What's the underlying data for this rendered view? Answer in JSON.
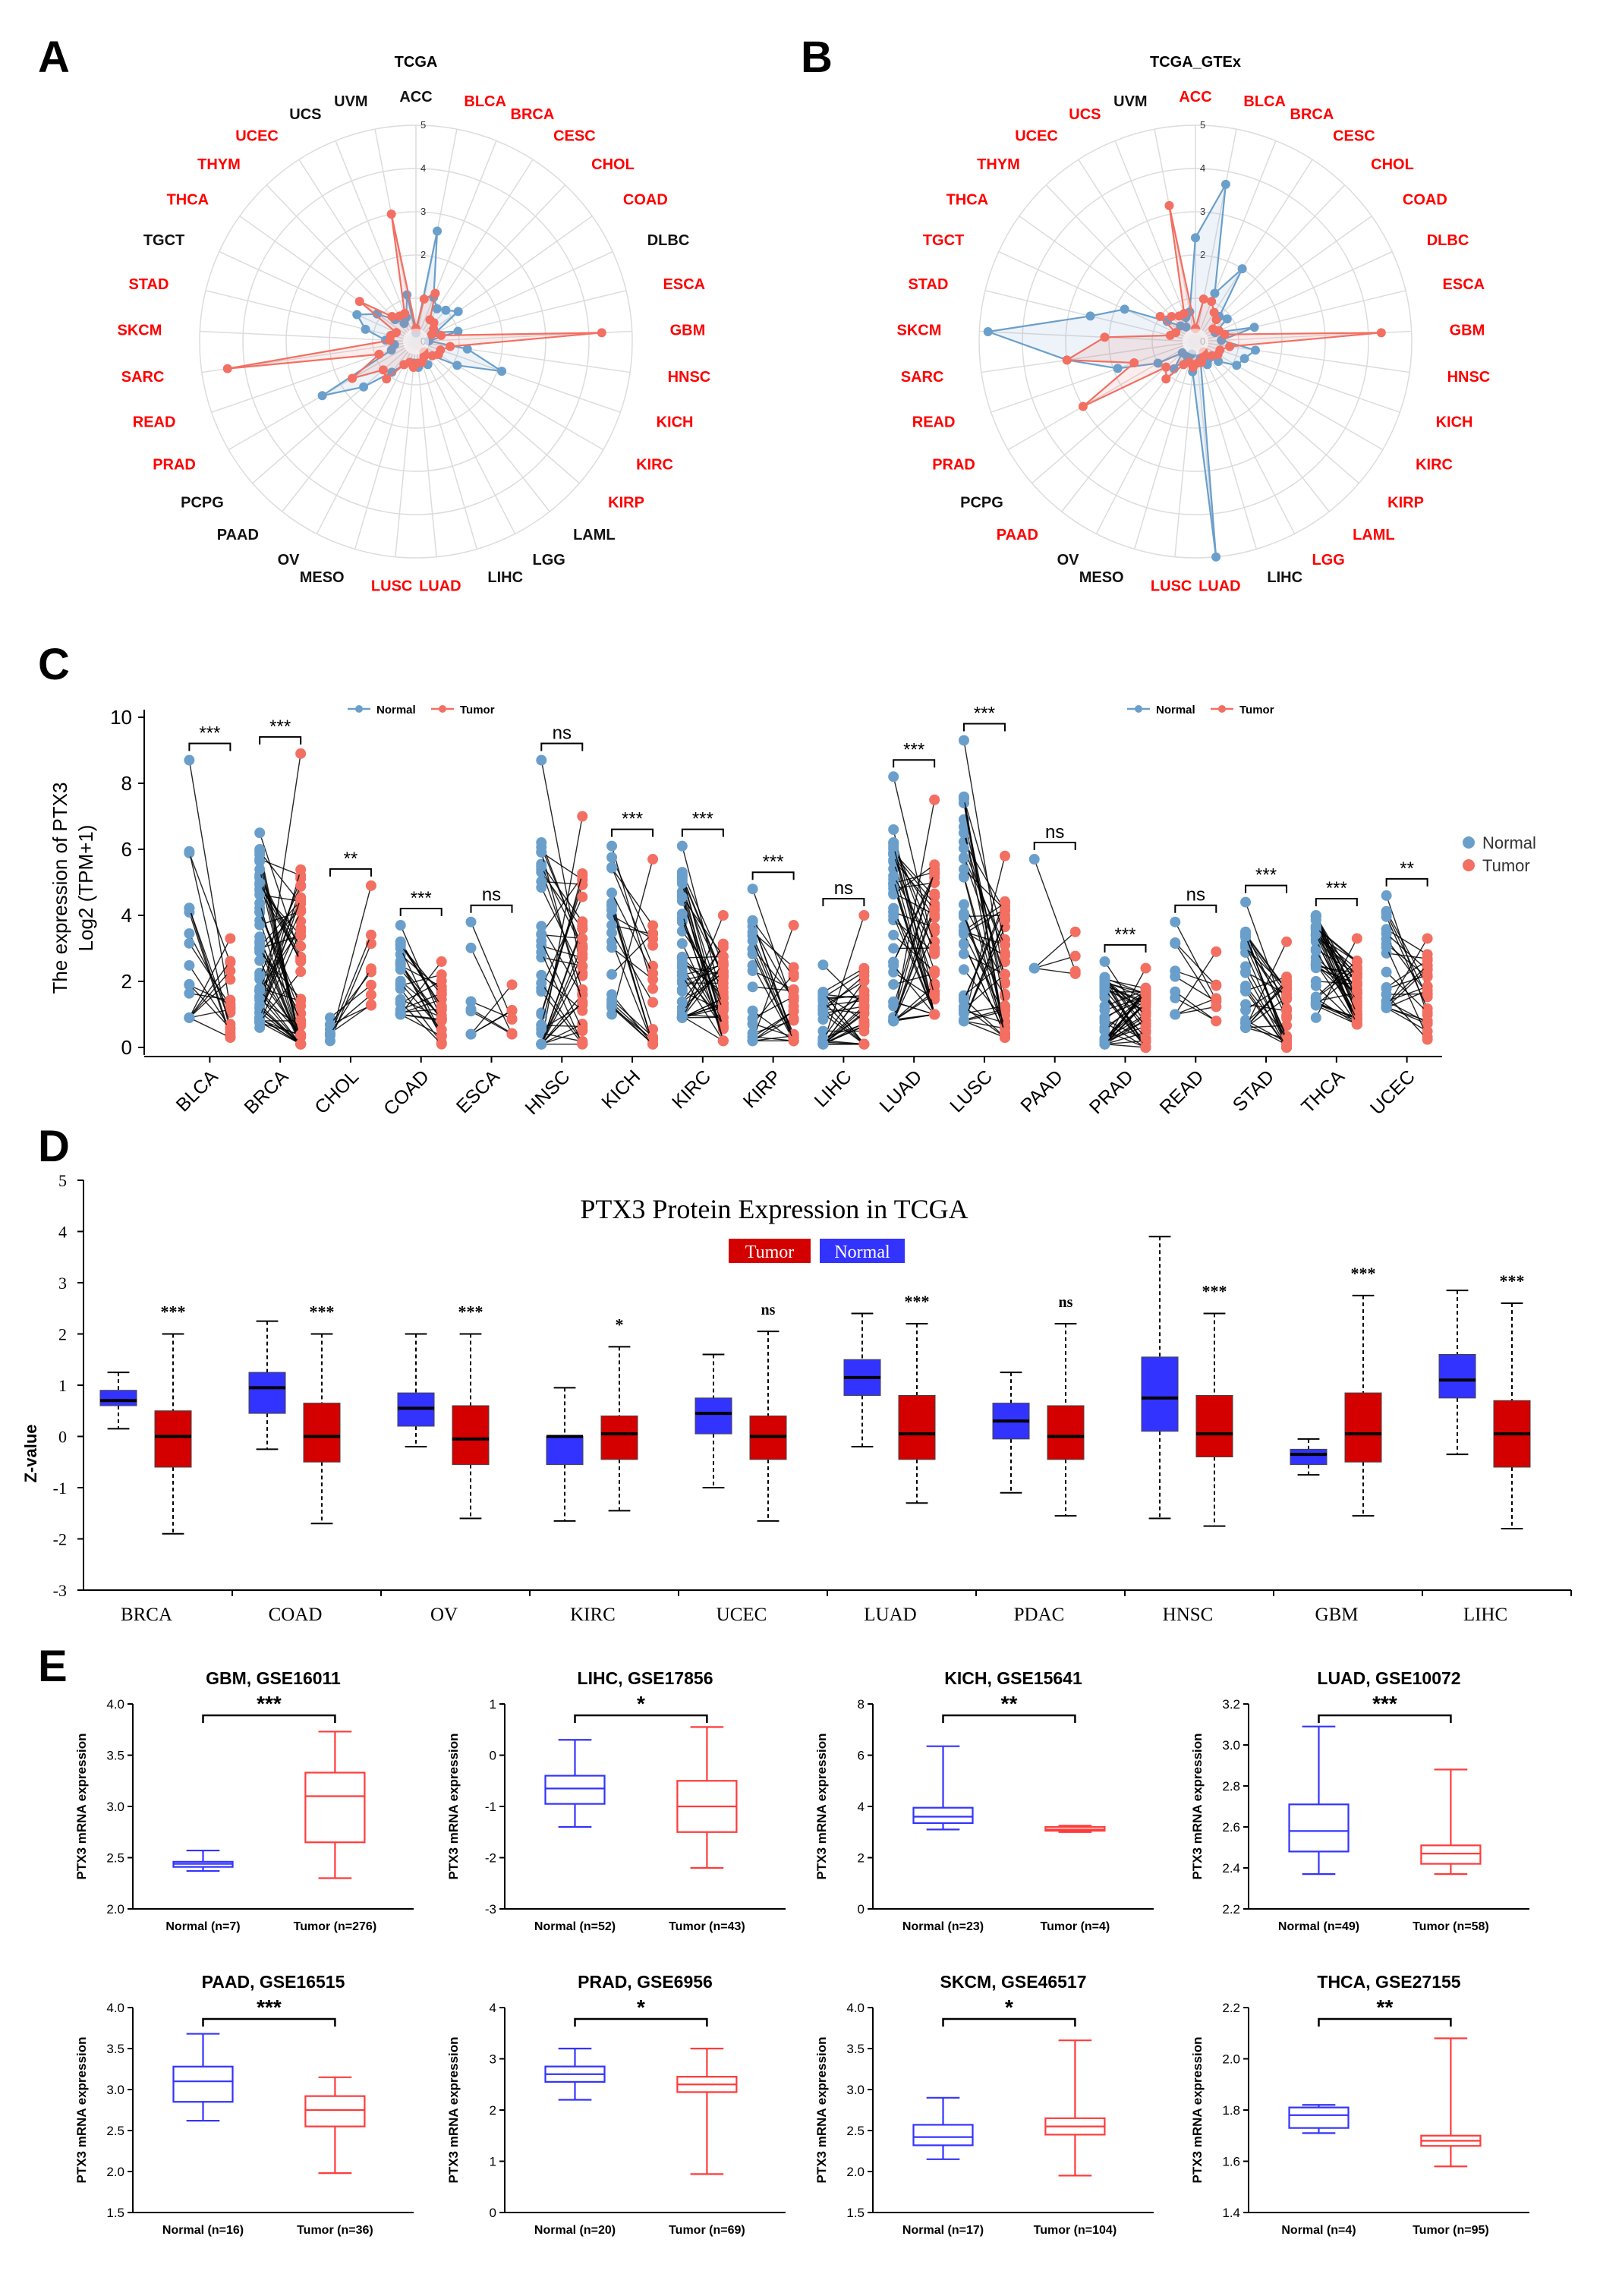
{
  "panels": {
    "A": "A",
    "B": "B",
    "C": "C",
    "D": "D",
    "E": "E"
  },
  "colors": {
    "normal": "#6a9fcb",
    "tumor": "#f26f62",
    "red_label": "#ff0000",
    "d_tumor": "#d40000",
    "d_normal": "#3333ff",
    "e_normal": "#3333ff",
    "e_tumor": "#ff3b3b"
  },
  "radarA": {
    "title": "TCGA",
    "ticks": [
      "0",
      "1",
      "2",
      "3",
      "4",
      "5"
    ],
    "max": 5,
    "categories": [
      {
        "name": "ACC",
        "red": false
      },
      {
        "name": "BLCA",
        "red": true
      },
      {
        "name": "BRCA",
        "red": true
      },
      {
        "name": "CESC",
        "red": true
      },
      {
        "name": "CHOL",
        "red": true
      },
      {
        "name": "COAD",
        "red": true
      },
      {
        "name": "DLBC",
        "red": false
      },
      {
        "name": "ESCA",
        "red": true
      },
      {
        "name": "GBM",
        "red": true
      },
      {
        "name": "HNSC",
        "red": true
      },
      {
        "name": "KICH",
        "red": true
      },
      {
        "name": "KIRC",
        "red": true
      },
      {
        "name": "KIRP",
        "red": true
      },
      {
        "name": "LAML",
        "red": false
      },
      {
        "name": "LGG",
        "red": false
      },
      {
        "name": "LIHC",
        "red": false
      },
      {
        "name": "LUAD",
        "red": true
      },
      {
        "name": "LUSC",
        "red": true
      },
      {
        "name": "MESO",
        "red": false
      },
      {
        "name": "OV",
        "red": false
      },
      {
        "name": "PAAD",
        "red": false
      },
      {
        "name": "PCPG",
        "red": false
      },
      {
        "name": "PRAD",
        "red": true
      },
      {
        "name": "READ",
        "red": true
      },
      {
        "name": "SARC",
        "red": true
      },
      {
        "name": "SKCM",
        "red": true
      },
      {
        "name": "STAD",
        "red": true
      },
      {
        "name": "TGCT",
        "red": false
      },
      {
        "name": "THCA",
        "red": true
      },
      {
        "name": "THYM",
        "red": true
      },
      {
        "name": "UCEC",
        "red": true
      },
      {
        "name": "UCS",
        "red": false
      },
      {
        "name": "UVM",
        "red": false
      }
    ],
    "normal": [
      0.2,
      2.6,
      1.1,
      0.9,
      1.0,
      1.2,
      0.5,
      1.0,
      0.3,
      1.2,
      2.1,
      1.1,
      0.5,
      0.3,
      0.6,
      0.5,
      0.6,
      0.5,
      0.5,
      0.6,
      0.9,
      1.6,
      2.5,
      0.6,
      0.5,
      0.7,
      1.2,
      1.5,
      1.1,
      0.7,
      0.5,
      0.6,
      1.1
    ],
    "tumor": [
      0.3,
      1.0,
      1.2,
      0.6,
      0.6,
      0.5,
      0.4,
      0.6,
      4.3,
      0.8,
      0.6,
      0.6,
      0.5,
      0.3,
      0.4,
      0.5,
      0.5,
      0.6,
      0.5,
      0.6,
      1.1,
      1.0,
      1.7,
      0.9,
      4.4,
      0.6,
      0.6,
      0.5,
      1.6,
      0.8,
      0.7,
      0.7,
      3.0
    ],
    "legend": {
      "normal": "Normal",
      "tumor": "Tumor"
    }
  },
  "radarB": {
    "title": "TCGA_GTEx",
    "ticks": [
      "0",
      "1",
      "2",
      "3",
      "4",
      "5"
    ],
    "max": 5,
    "categories": [
      {
        "name": "ACC",
        "red": true
      },
      {
        "name": "BLCA",
        "red": true
      },
      {
        "name": "BRCA",
        "red": true
      },
      {
        "name": "CESC",
        "red": true
      },
      {
        "name": "CHOL",
        "red": true
      },
      {
        "name": "COAD",
        "red": true
      },
      {
        "name": "DLBC",
        "red": true
      },
      {
        "name": "ESCA",
        "red": true
      },
      {
        "name": "GBM",
        "red": true
      },
      {
        "name": "HNSC",
        "red": true
      },
      {
        "name": "KICH",
        "red": true
      },
      {
        "name": "KIRC",
        "red": true
      },
      {
        "name": "KIRP",
        "red": true
      },
      {
        "name": "LAML",
        "red": true
      },
      {
        "name": "LGG",
        "red": true
      },
      {
        "name": "LIHC",
        "red": false
      },
      {
        "name": "LUAD",
        "red": true
      },
      {
        "name": "LUSC",
        "red": true
      },
      {
        "name": "MESO",
        "red": false
      },
      {
        "name": "OV",
        "red": false
      },
      {
        "name": "PAAD",
        "red": true
      },
      {
        "name": "PCPG",
        "red": false
      },
      {
        "name": "PRAD",
        "red": true
      },
      {
        "name": "READ",
        "red": true
      },
      {
        "name": "SARC",
        "red": true
      },
      {
        "name": "SKCM",
        "red": true
      },
      {
        "name": "STAD",
        "red": true
      },
      {
        "name": "TGCT",
        "red": true
      },
      {
        "name": "THCA",
        "red": true
      },
      {
        "name": "THYM",
        "red": true
      },
      {
        "name": "UCEC",
        "red": true
      },
      {
        "name": "UCS",
        "red": true
      },
      {
        "name": "UVM",
        "red": false
      }
    ],
    "normal": [
      2.4,
      3.7,
      1.2,
      2.0,
      0.8,
      0.9,
      0.5,
      1.4,
      0.6,
      1.4,
      1.2,
      1.1,
      0.7,
      0.5,
      0.6,
      0.4,
      5.0,
      0.7,
      0.3,
      0.4,
      0.8,
      0.4,
      1.0,
      1.9,
      3.0,
      4.8,
      2.5,
      1.8,
      0.8,
      0.5,
      0.4,
      0.6,
      0.7
    ],
    "tumor": [
      0.3,
      1.0,
      1.0,
      0.8,
      0.7,
      0.5,
      0.6,
      0.7,
      4.3,
      0.8,
      0.6,
      0.6,
      0.5,
      0.3,
      0.4,
      0.5,
      0.5,
      0.6,
      0.5,
      0.6,
      1.1,
      0.9,
      3.0,
      1.5,
      3.0,
      2.1,
      0.6,
      0.5,
      1.0,
      0.8,
      0.7,
      0.7,
      3.2
    ],
    "legend": {
      "normal": "Normal",
      "tumor": "Tumor"
    }
  },
  "paired": {
    "ylabel_line1": "The expression of PTX3",
    "ylabel_line2": "Log2 (TPM+1)",
    "yticks": [
      "0",
      "2",
      "4",
      "6",
      "8",
      "10"
    ],
    "ymax": 10,
    "legend": {
      "normal": "Normal",
      "tumor": "Tumor"
    },
    "groups": [
      {
        "name": "BLCA",
        "sig": "***",
        "nmin": 0.9,
        "nmax": 8.7,
        "tmin": 0.3,
        "tmax": 3.3,
        "nmed": 2.5,
        "tmed": 1.3,
        "n": 18
      },
      {
        "name": "BRCA",
        "sig": "***",
        "nmin": 0.6,
        "nmax": 6.5,
        "tmin": 0.1,
        "tmax": 8.9,
        "nmed": 3.4,
        "tmed": 1.5,
        "n": 60
      },
      {
        "name": "CHOL",
        "sig": "**",
        "nmin": 0.2,
        "nmax": 0.9,
        "tmin": 0.6,
        "tmax": 4.9,
        "nmed": 0.4,
        "tmed": 1.6,
        "n": 9
      },
      {
        "name": "COAD",
        "sig": "***",
        "nmin": 1.0,
        "nmax": 3.7,
        "tmin": 0.1,
        "tmax": 2.6,
        "nmed": 2.0,
        "tmed": 1.1,
        "n": 26
      },
      {
        "name": "ESCA",
        "sig": "ns",
        "nmin": 0.4,
        "nmax": 3.8,
        "tmin": 0.4,
        "tmax": 1.9,
        "nmed": 1.6,
        "tmed": 0.8,
        "n": 8
      },
      {
        "name": "HNSC",
        "sig": "ns",
        "nmin": 0.1,
        "nmax": 8.7,
        "tmin": 0.1,
        "tmax": 7.0,
        "nmed": 2.4,
        "tmed": 2.3,
        "n": 40
      },
      {
        "name": "KICH",
        "sig": "***",
        "nmin": 1.0,
        "nmax": 6.1,
        "tmin": 0.1,
        "tmax": 5.7,
        "nmed": 3.5,
        "tmed": 1.2,
        "n": 22
      },
      {
        "name": "KIRC",
        "sig": "***",
        "nmin": 0.9,
        "nmax": 6.1,
        "tmin": 0.2,
        "tmax": 4.0,
        "nmed": 3.0,
        "tmed": 1.5,
        "n": 48
      },
      {
        "name": "KIRP",
        "sig": "***",
        "nmin": 0.2,
        "nmax": 4.8,
        "tmin": 0.2,
        "tmax": 3.7,
        "nmed": 1.8,
        "tmed": 0.9,
        "n": 26
      },
      {
        "name": "LIHC",
        "sig": "ns",
        "nmin": 0.1,
        "nmax": 2.5,
        "tmin": 0.1,
        "tmax": 4.0,
        "nmed": 0.6,
        "tmed": 0.7,
        "n": 40
      },
      {
        "name": "LUAD",
        "sig": "***",
        "nmin": 0.8,
        "nmax": 8.2,
        "tmin": 1.0,
        "tmax": 7.5,
        "nmed": 3.3,
        "tmed": 2.8,
        "n": 48
      },
      {
        "name": "LUSC",
        "sig": "***",
        "nmin": 0.8,
        "nmax": 9.3,
        "tmin": 0.3,
        "tmax": 5.8,
        "nmed": 3.8,
        "tmed": 2.0,
        "n": 46
      },
      {
        "name": "PAAD",
        "sig": "ns",
        "nmin": 2.4,
        "nmax": 5.7,
        "tmin": 1.8,
        "tmax": 3.5,
        "nmed": 3.0,
        "tmed": 2.6,
        "n": 4
      },
      {
        "name": "PRAD",
        "sig": "***",
        "nmin": 0.1,
        "nmax": 2.6,
        "tmin": 0.0,
        "tmax": 2.4,
        "nmed": 1.0,
        "tmed": 0.8,
        "n": 48
      },
      {
        "name": "READ",
        "sig": "ns",
        "nmin": 1.0,
        "nmax": 3.8,
        "tmin": 0.8,
        "tmax": 2.9,
        "nmed": 2.0,
        "tmed": 1.3,
        "n": 10
      },
      {
        "name": "STAD",
        "sig": "***",
        "nmin": 0.6,
        "nmax": 4.4,
        "tmin": 0.0,
        "tmax": 3.2,
        "nmed": 1.8,
        "tmed": 1.0,
        "n": 32
      },
      {
        "name": "THCA",
        "sig": "***",
        "nmin": 0.9,
        "nmax": 4.0,
        "tmin": 0.7,
        "tmax": 3.3,
        "nmed": 2.6,
        "tmed": 1.6,
        "n": 46
      },
      {
        "name": "UCEC",
        "sig": "**",
        "nmin": 1.2,
        "nmax": 4.6,
        "tmin": 0.0,
        "tmax": 3.3,
        "nmed": 2.6,
        "tmed": 1.4,
        "n": 24
      }
    ]
  },
  "protein": {
    "title": "PTX3 Protein Expression in TCGA",
    "legend": {
      "tumor": "Tumor",
      "normal": "Normal"
    },
    "ylabel": "Z-value",
    "yticks": [
      "-3",
      "-2",
      "-1",
      "0",
      "1",
      "2",
      "3",
      "4",
      "5"
    ],
    "ymin": -3,
    "ymax": 5,
    "groups": [
      {
        "name": "BRCA",
        "sig": "***",
        "n": [
          0.15,
          0.6,
          0.7,
          0.9,
          1.25
        ],
        "t": [
          -1.9,
          -0.6,
          0.0,
          0.5,
          2.0
        ]
      },
      {
        "name": "COAD",
        "sig": "***",
        "n": [
          -0.25,
          0.45,
          0.95,
          1.25,
          2.25
        ],
        "t": [
          -1.7,
          -0.5,
          0.0,
          0.65,
          2.0
        ]
      },
      {
        "name": "OV",
        "sig": "***",
        "n": [
          -0.2,
          0.2,
          0.55,
          0.85,
          2.0
        ],
        "t": [
          -1.6,
          -0.55,
          -0.05,
          0.6,
          2.0
        ]
      },
      {
        "name": "KIRC",
        "sig": "*",
        "n": [
          -1.65,
          -0.55,
          0.0,
          0.0,
          0.95
        ],
        "t": [
          -1.45,
          -0.45,
          0.05,
          0.4,
          1.75
        ]
      },
      {
        "name": "UCEC",
        "sig": "ns",
        "n": [
          -1.0,
          0.05,
          0.45,
          0.75,
          1.6
        ],
        "t": [
          -1.65,
          -0.45,
          0.0,
          0.4,
          2.05
        ]
      },
      {
        "name": "LUAD",
        "sig": "***",
        "n": [
          -0.2,
          0.8,
          1.15,
          1.5,
          2.4
        ],
        "t": [
          -1.3,
          -0.45,
          0.05,
          0.8,
          2.2
        ]
      },
      {
        "name": "PDAC",
        "sig": "ns",
        "n": [
          -1.1,
          -0.05,
          0.3,
          0.65,
          1.25
        ],
        "t": [
          -1.55,
          -0.45,
          0.0,
          0.6,
          2.2
        ]
      },
      {
        "name": "HNSC",
        "sig": "***",
        "n": [
          -1.6,
          0.1,
          0.75,
          1.55,
          3.9
        ],
        "t": [
          -1.75,
          -0.4,
          0.05,
          0.8,
          2.4
        ]
      },
      {
        "name": "GBM",
        "sig": "***",
        "n": [
          -0.75,
          -0.55,
          -0.35,
          -0.25,
          -0.05
        ],
        "t": [
          -1.55,
          -0.5,
          0.05,
          0.85,
          2.75
        ]
      },
      {
        "name": "LIHC",
        "sig": "***",
        "n": [
          -0.35,
          0.75,
          1.1,
          1.6,
          2.85
        ],
        "t": [
          -1.8,
          -0.6,
          0.05,
          0.7,
          2.6
        ]
      }
    ]
  },
  "geo": [
    {
      "title": "GBM, GSE16011",
      "sig": "***",
      "ymin": 2.0,
      "ymax": 4.0,
      "yticks": [
        "2.0",
        "2.5",
        "3.0",
        "3.5",
        "4.0"
      ],
      "normal_label": "Normal (n=7)",
      "tumor_label": "Tumor (n=276)",
      "n": [
        2.37,
        2.41,
        2.44,
        2.46,
        2.57
      ],
      "t": [
        2.3,
        2.65,
        3.1,
        3.33,
        3.73
      ],
      "ylabel": "PTX3 mRNA expression"
    },
    {
      "title": "LIHC, GSE17856",
      "sig": "*",
      "ymin": -3,
      "ymax": 1,
      "yticks": [
        "-3",
        "-2",
        "-1",
        "0",
        "1"
      ],
      "normal_label": "Normal (n=52)",
      "tumor_label": "Tumor (n=43)",
      "n": [
        -1.4,
        -0.95,
        -0.65,
        -0.4,
        0.3
      ],
      "t": [
        -2.2,
        -1.5,
        -1.0,
        -0.5,
        0.55
      ],
      "ylabel": "PTX3 mRNA expression"
    },
    {
      "title": "KICH, GSE15641",
      "sig": "**",
      "ymin": 0,
      "ymax": 8,
      "yticks": [
        "0",
        "2",
        "4",
        "6",
        "8"
      ],
      "normal_label": "Normal (n=23)",
      "tumor_label": "Tumor (n=4)",
      "n": [
        3.1,
        3.35,
        3.6,
        3.95,
        6.35
      ],
      "t": [
        3.0,
        3.05,
        3.1,
        3.2,
        3.25
      ],
      "ylabel": "PTX3 mRNA expression"
    },
    {
      "title": "LUAD, GSE10072",
      "sig": "***",
      "ymin": 2.2,
      "ymax": 3.2,
      "yticks": [
        "2.2",
        "2.4",
        "2.6",
        "2.8",
        "3.0",
        "3.2"
      ],
      "normal_label": "Normal (n=49)",
      "tumor_label": "Tumor (n=58)",
      "n": [
        2.37,
        2.48,
        2.58,
        2.71,
        3.09
      ],
      "t": [
        2.37,
        2.42,
        2.47,
        2.51,
        2.88
      ],
      "ylabel": "PTX3 mRNA expression"
    },
    {
      "title": "PAAD, GSE16515",
      "sig": "***",
      "ymin": 1.5,
      "ymax": 4.0,
      "yticks": [
        "1.5",
        "2.0",
        "2.5",
        "3.0",
        "3.5",
        "4.0"
      ],
      "normal_label": "Normal (n=16)",
      "tumor_label": "Tumor (n=36)",
      "n": [
        2.62,
        2.85,
        3.1,
        3.28,
        3.68
      ],
      "t": [
        1.98,
        2.55,
        2.75,
        2.92,
        3.15
      ],
      "ylabel": "PTX3 mRNA expression"
    },
    {
      "title": "PRAD, GSE6956",
      "sig": "*",
      "ymin": 0,
      "ymax": 4,
      "yticks": [
        "0",
        "1",
        "2",
        "3",
        "4"
      ],
      "normal_label": "Normal (n=20)",
      "tumor_label": "Tumor (n=69)",
      "n": [
        2.2,
        2.55,
        2.7,
        2.85,
        3.2
      ],
      "t": [
        0.75,
        2.35,
        2.5,
        2.65,
        3.2
      ],
      "ylabel": "PTX3 mRNA expression"
    },
    {
      "title": "SKCM, GSE46517",
      "sig": "*",
      "ymin": 1.5,
      "ymax": 4.0,
      "yticks": [
        "1.5",
        "2.0",
        "2.5",
        "3.0",
        "3.5",
        "4.0"
      ],
      "normal_label": "Normal (n=17)",
      "tumor_label": "Tumor (n=104)",
      "n": [
        2.15,
        2.32,
        2.42,
        2.57,
        2.9
      ],
      "t": [
        1.95,
        2.45,
        2.55,
        2.65,
        3.6
      ],
      "ylabel": "PTX3 mRNA expression"
    },
    {
      "title": "THCA, GSE27155",
      "sig": "**",
      "ymin": 1.4,
      "ymax": 2.2,
      "yticks": [
        "1.4",
        "1.6",
        "1.8",
        "2.0",
        "2.2"
      ],
      "normal_label": "Normal (n=4)",
      "tumor_label": "Tumor (n=95)",
      "n": [
        1.71,
        1.73,
        1.78,
        1.81,
        1.82
      ],
      "t": [
        1.58,
        1.66,
        1.68,
        1.7,
        2.08
      ],
      "ylabel": "PTX3 mRNA expression"
    }
  ],
  "chart_data": [
    {
      "type": "radar",
      "title": "TCGA",
      "series": [
        {
          "name": "Normal"
        },
        {
          "name": "Tumor"
        }
      ],
      "rlim": [
        0,
        5
      ]
    },
    {
      "type": "radar",
      "title": "TCGA_GTEx",
      "series": [
        {
          "name": "Normal"
        },
        {
          "name": "Tumor"
        }
      ],
      "rlim": [
        0,
        5
      ]
    },
    {
      "type": "scatter",
      "subtype": "paired",
      "ylabel": "The expression of PTX3 Log2 (TPM+1)",
      "ylim": [
        0,
        10
      ],
      "categories": [
        "BLCA",
        "BRCA",
        "CHOL",
        "COAD",
        "ESCA",
        "HNSC",
        "KICH",
        "KIRC",
        "KIRP",
        "LIHC",
        "LUAD",
        "LUSC",
        "PAAD",
        "PRAD",
        "READ",
        "STAD",
        "THCA",
        "UCEC"
      ],
      "significance": [
        "***",
        "***",
        "**",
        "***",
        "ns",
        "ns",
        "***",
        "***",
        "***",
        "ns",
        "***",
        "***",
        "ns",
        "***",
        "ns",
        "***",
        "***",
        "**"
      ],
      "series": [
        {
          "name": "Normal"
        },
        {
          "name": "Tumor"
        }
      ]
    },
    {
      "type": "box",
      "title": "PTX3 Protein Expression in TCGA",
      "ylabel": "Z-value",
      "ylim": [
        -3,
        5
      ],
      "categories": [
        "BRCA",
        "COAD",
        "OV",
        "KIRC",
        "UCEC",
        "LUAD",
        "PDAC",
        "HNSC",
        "GBM",
        "LIHC"
      ],
      "series": [
        {
          "name": "Normal"
        },
        {
          "name": "Tumor"
        }
      ]
    },
    {
      "type": "box",
      "panels": [
        "GBM, GSE16011",
        "LIHC, GSE17856",
        "KICH, GSE15641",
        "LUAD, GSE10072",
        "PAAD, GSE16515",
        "PRAD, GSE6956",
        "SKCM, GSE46517",
        "THCA, GSE27155"
      ],
      "ylabel": "PTX3 mRNA expression"
    }
  ]
}
